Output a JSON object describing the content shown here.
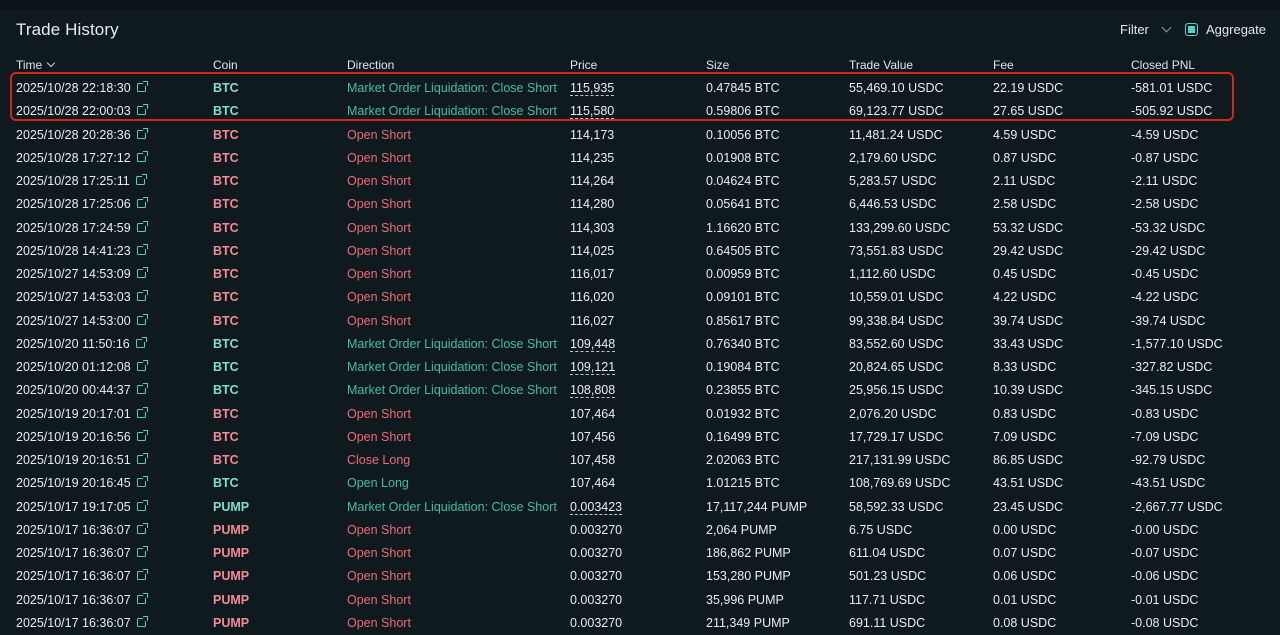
{
  "title": "Trade History",
  "filter_label": "Filter",
  "aggregate_label": "Aggregate",
  "columns": {
    "time": "Time",
    "coin": "Coin",
    "direction": "Direction",
    "price": "Price",
    "size": "Size",
    "trade_value": "Trade Value",
    "fee": "Fee",
    "closed_pnl": "Closed PNL"
  },
  "colors": {
    "close_short": "#3fbf9a",
    "open_short": "#ec6b74",
    "close_long": "#ec6b74",
    "open_long": "#3fbf9a",
    "coin_red": "#f28b95",
    "coin_green": "#7fe0c8",
    "highlight": "#d2261a"
  },
  "rows": [
    {
      "time": "2025/10/28 22:18:30",
      "coin": "BTC",
      "coin_color": "coin_green",
      "direction": "Market Order Liquidation: Close Short",
      "dir_color": "close_short",
      "price": "115,935",
      "price_dotted": true,
      "size": "0.47845 BTC",
      "value": "55,469.10 USDC",
      "fee": "22.19 USDC",
      "pnl": "-581.01 USDC"
    },
    {
      "time": "2025/10/28 22:00:03",
      "coin": "BTC",
      "coin_color": "coin_green",
      "direction": "Market Order Liquidation: Close Short",
      "dir_color": "close_short",
      "price": "115,580",
      "price_dotted": true,
      "size": "0.59806 BTC",
      "value": "69,123.77 USDC",
      "fee": "27.65 USDC",
      "pnl": "-505.92 USDC"
    },
    {
      "time": "2025/10/28 20:28:36",
      "coin": "BTC",
      "coin_color": "coin_red",
      "direction": "Open Short",
      "dir_color": "open_short",
      "price": "114,173",
      "price_dotted": false,
      "size": "0.10056 BTC",
      "value": "11,481.24 USDC",
      "fee": "4.59 USDC",
      "pnl": "-4.59 USDC"
    },
    {
      "time": "2025/10/28 17:27:12",
      "coin": "BTC",
      "coin_color": "coin_red",
      "direction": "Open Short",
      "dir_color": "open_short",
      "price": "114,235",
      "price_dotted": false,
      "size": "0.01908 BTC",
      "value": "2,179.60 USDC",
      "fee": "0.87 USDC",
      "pnl": "-0.87 USDC"
    },
    {
      "time": "2025/10/28 17:25:11",
      "coin": "BTC",
      "coin_color": "coin_red",
      "direction": "Open Short",
      "dir_color": "open_short",
      "price": "114,264",
      "price_dotted": false,
      "size": "0.04624 BTC",
      "value": "5,283.57 USDC",
      "fee": "2.11 USDC",
      "pnl": "-2.11 USDC"
    },
    {
      "time": "2025/10/28 17:25:06",
      "coin": "BTC",
      "coin_color": "coin_red",
      "direction": "Open Short",
      "dir_color": "open_short",
      "price": "114,280",
      "price_dotted": false,
      "size": "0.05641 BTC",
      "value": "6,446.53 USDC",
      "fee": "2.58 USDC",
      "pnl": "-2.58 USDC"
    },
    {
      "time": "2025/10/28 17:24:59",
      "coin": "BTC",
      "coin_color": "coin_red",
      "direction": "Open Short",
      "dir_color": "open_short",
      "price": "114,303",
      "price_dotted": false,
      "size": "1.16620 BTC",
      "value": "133,299.60 USDC",
      "fee": "53.32 USDC",
      "pnl": "-53.32 USDC"
    },
    {
      "time": "2025/10/28 14:41:23",
      "coin": "BTC",
      "coin_color": "coin_red",
      "direction": "Open Short",
      "dir_color": "open_short",
      "price": "114,025",
      "price_dotted": false,
      "size": "0.64505 BTC",
      "value": "73,551.83 USDC",
      "fee": "29.42 USDC",
      "pnl": "-29.42 USDC"
    },
    {
      "time": "2025/10/27 14:53:09",
      "coin": "BTC",
      "coin_color": "coin_red",
      "direction": "Open Short",
      "dir_color": "open_short",
      "price": "116,017",
      "price_dotted": false,
      "size": "0.00959 BTC",
      "value": "1,112.60 USDC",
      "fee": "0.45 USDC",
      "pnl": "-0.45 USDC"
    },
    {
      "time": "2025/10/27 14:53:03",
      "coin": "BTC",
      "coin_color": "coin_red",
      "direction": "Open Short",
      "dir_color": "open_short",
      "price": "116,020",
      "price_dotted": false,
      "size": "0.09101 BTC",
      "value": "10,559.01 USDC",
      "fee": "4.22 USDC",
      "pnl": "-4.22 USDC"
    },
    {
      "time": "2025/10/27 14:53:00",
      "coin": "BTC",
      "coin_color": "coin_red",
      "direction": "Open Short",
      "dir_color": "open_short",
      "price": "116,027",
      "price_dotted": false,
      "size": "0.85617 BTC",
      "value": "99,338.84 USDC",
      "fee": "39.74 USDC",
      "pnl": "-39.74 USDC"
    },
    {
      "time": "2025/10/20 11:50:16",
      "coin": "BTC",
      "coin_color": "coin_green",
      "direction": "Market Order Liquidation: Close Short",
      "dir_color": "close_short",
      "price": "109,448",
      "price_dotted": true,
      "size": "0.76340 BTC",
      "value": "83,552.60 USDC",
      "fee": "33.43 USDC",
      "pnl": "-1,577.10 USDC"
    },
    {
      "time": "2025/10/20 01:12:08",
      "coin": "BTC",
      "coin_color": "coin_green",
      "direction": "Market Order Liquidation: Close Short",
      "dir_color": "close_short",
      "price": "109,121",
      "price_dotted": true,
      "size": "0.19084 BTC",
      "value": "20,824.65 USDC",
      "fee": "8.33 USDC",
      "pnl": "-327.82 USDC"
    },
    {
      "time": "2025/10/20 00:44:37",
      "coin": "BTC",
      "coin_color": "coin_green",
      "direction": "Market Order Liquidation: Close Short",
      "dir_color": "close_short",
      "price": "108,808",
      "price_dotted": true,
      "size": "0.23855 BTC",
      "value": "25,956.15 USDC",
      "fee": "10.39 USDC",
      "pnl": "-345.15 USDC"
    },
    {
      "time": "2025/10/19 20:17:01",
      "coin": "BTC",
      "coin_color": "coin_red",
      "direction": "Open Short",
      "dir_color": "open_short",
      "price": "107,464",
      "price_dotted": false,
      "size": "0.01932 BTC",
      "value": "2,076.20 USDC",
      "fee": "0.83 USDC",
      "pnl": "-0.83 USDC"
    },
    {
      "time": "2025/10/19 20:16:56",
      "coin": "BTC",
      "coin_color": "coin_red",
      "direction": "Open Short",
      "dir_color": "open_short",
      "price": "107,456",
      "price_dotted": false,
      "size": "0.16499 BTC",
      "value": "17,729.17 USDC",
      "fee": "7.09 USDC",
      "pnl": "-7.09 USDC"
    },
    {
      "time": "2025/10/19 20:16:51",
      "coin": "BTC",
      "coin_color": "coin_red",
      "direction": "Close Long",
      "dir_color": "close_long",
      "price": "107,458",
      "price_dotted": false,
      "size": "2.02063 BTC",
      "value": "217,131.99 USDC",
      "fee": "86.85 USDC",
      "pnl": "-92.79 USDC"
    },
    {
      "time": "2025/10/19 20:16:45",
      "coin": "BTC",
      "coin_color": "coin_green",
      "direction": "Open Long",
      "dir_color": "open_long",
      "price": "107,464",
      "price_dotted": false,
      "size": "1.01215 BTC",
      "value": "108,769.69 USDC",
      "fee": "43.51 USDC",
      "pnl": "-43.51 USDC"
    },
    {
      "time": "2025/10/17 19:17:05",
      "coin": "PUMP",
      "coin_color": "coin_green",
      "direction": "Market Order Liquidation: Close Short",
      "dir_color": "close_short",
      "price": "0.003423",
      "price_dotted": true,
      "size": "17,117,244 PUMP",
      "value": "58,592.33 USDC",
      "fee": "23.45 USDC",
      "pnl": "-2,667.77 USDC"
    },
    {
      "time": "2025/10/17 16:36:07",
      "coin": "PUMP",
      "coin_color": "coin_red",
      "direction": "Open Short",
      "dir_color": "open_short",
      "price": "0.003270",
      "price_dotted": false,
      "size": "2,064 PUMP",
      "value": "6.75 USDC",
      "fee": "0.00 USDC",
      "pnl": "-0.00 USDC"
    },
    {
      "time": "2025/10/17 16:36:07",
      "coin": "PUMP",
      "coin_color": "coin_red",
      "direction": "Open Short",
      "dir_color": "open_short",
      "price": "0.003270",
      "price_dotted": false,
      "size": "186,862 PUMP",
      "value": "611.04 USDC",
      "fee": "0.07 USDC",
      "pnl": "-0.07 USDC"
    },
    {
      "time": "2025/10/17 16:36:07",
      "coin": "PUMP",
      "coin_color": "coin_red",
      "direction": "Open Short",
      "dir_color": "open_short",
      "price": "0.003270",
      "price_dotted": false,
      "size": "153,280 PUMP",
      "value": "501.23 USDC",
      "fee": "0.06 USDC",
      "pnl": "-0.06 USDC"
    },
    {
      "time": "2025/10/17 16:36:07",
      "coin": "PUMP",
      "coin_color": "coin_red",
      "direction": "Open Short",
      "dir_color": "open_short",
      "price": "0.003270",
      "price_dotted": false,
      "size": "35,996 PUMP",
      "value": "117.71 USDC",
      "fee": "0.01 USDC",
      "pnl": "-0.01 USDC"
    },
    {
      "time": "2025/10/17 16:36:07",
      "coin": "PUMP",
      "coin_color": "coin_red",
      "direction": "Open Short",
      "dir_color": "open_short",
      "price": "0.003270",
      "price_dotted": false,
      "size": "211,349 PUMP",
      "value": "691.11 USDC",
      "fee": "0.08 USDC",
      "pnl": "-0.08 USDC"
    }
  ]
}
